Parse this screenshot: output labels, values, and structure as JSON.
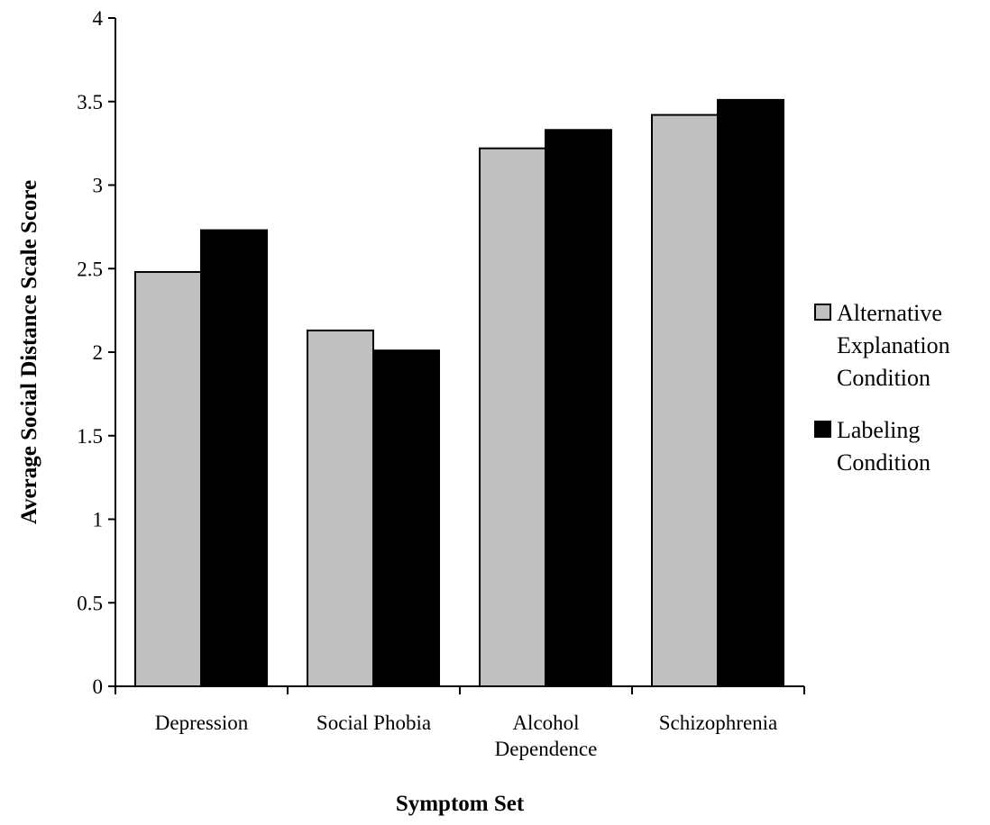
{
  "chart_data": {
    "type": "bar",
    "categories": [
      "Depression",
      "Social Phobia",
      "Alcohol Dependence",
      "Schizophrenia"
    ],
    "category_label_lines": [
      [
        "Depression"
      ],
      [
        "Social Phobia"
      ],
      [
        "Alcohol",
        "Dependence"
      ],
      [
        "Schizophrenia"
      ]
    ],
    "series": [
      {
        "name": "Alternative Explanation Condition",
        "name_lines": [
          "Alternative",
          "Explanation",
          "Condition"
        ],
        "color": "#c0c0c0",
        "values": [
          2.48,
          2.13,
          3.22,
          3.42
        ]
      },
      {
        "name": "Labeling Condition",
        "name_lines": [
          "Labeling",
          "Condition"
        ],
        "color": "#000000",
        "values": [
          2.73,
          2.01,
          3.33,
          3.51
        ]
      }
    ],
    "xlabel": "Symptom Set",
    "ylabel": "Average Social Distance Scale Score",
    "ylim": [
      0,
      4
    ],
    "yticks": [
      "0",
      "0.5",
      "1",
      "1.5",
      "2",
      "2.5",
      "3",
      "3.5",
      "4"
    ],
    "grid": false,
    "legend_position": "right"
  }
}
